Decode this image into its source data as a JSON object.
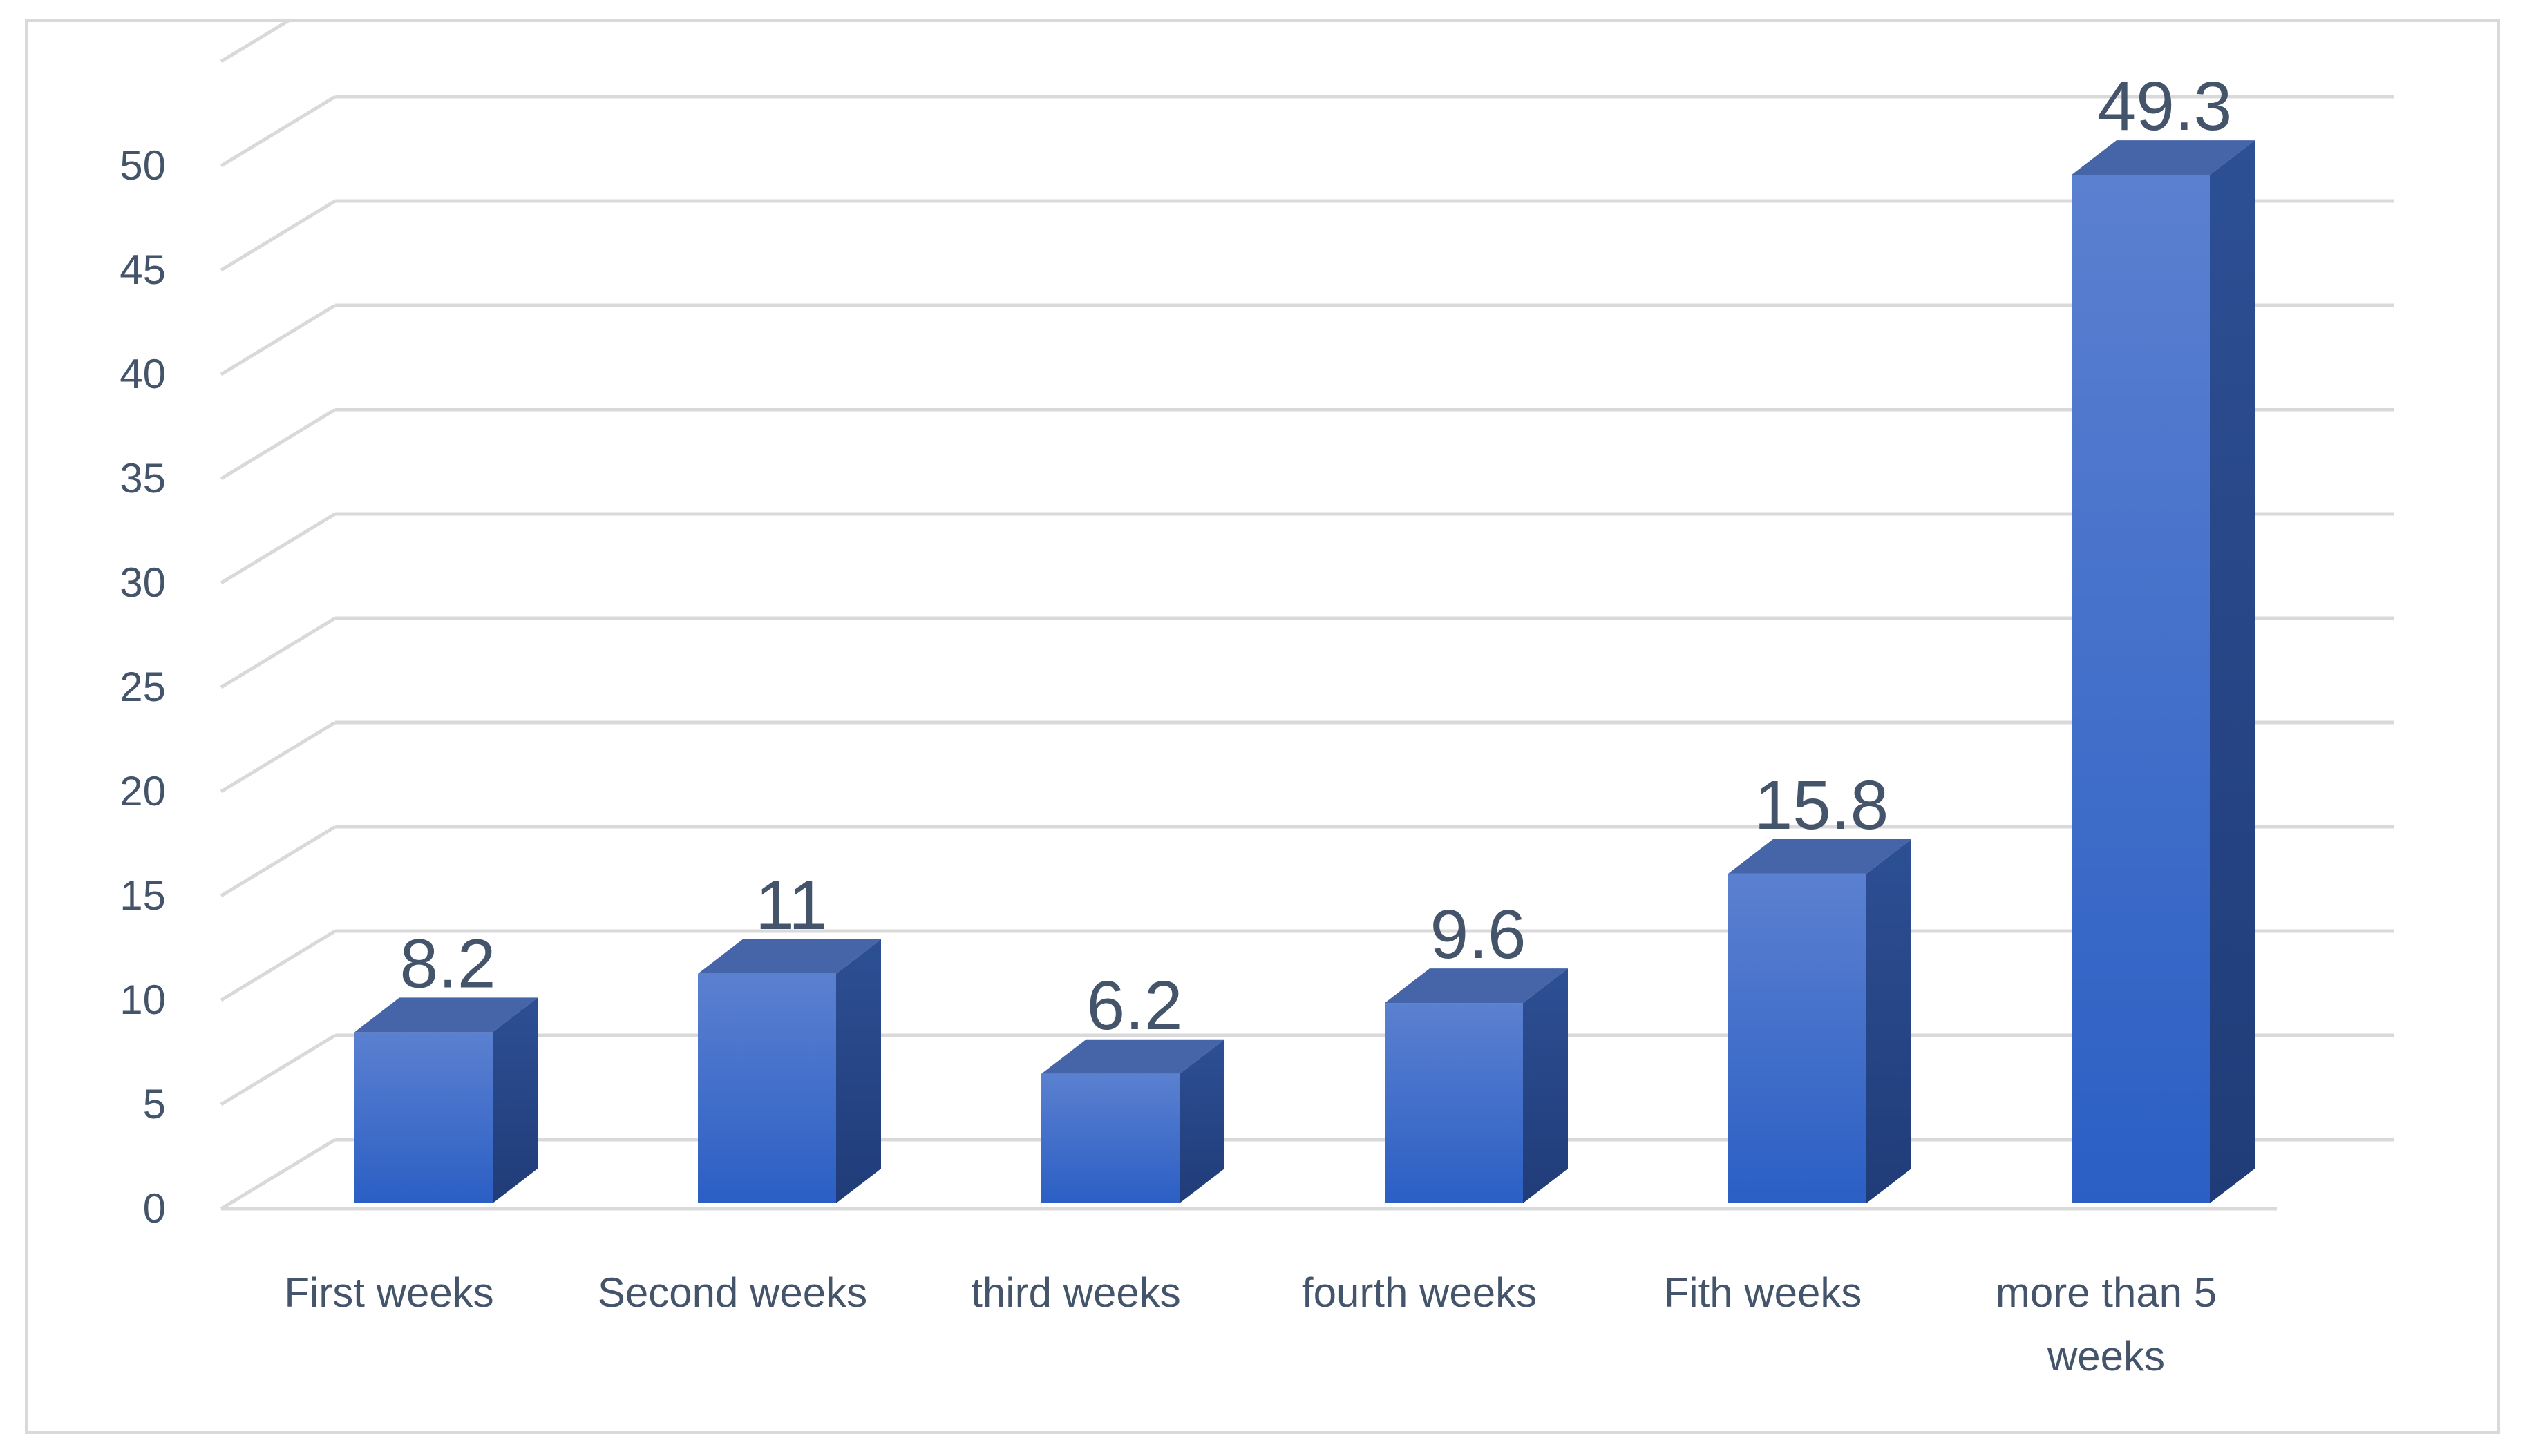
{
  "chart_data": {
    "type": "bar",
    "style": "3d-column",
    "categories": [
      [
        "First weeks"
      ],
      [
        "Second weeks"
      ],
      [
        "third weeks"
      ],
      [
        "fourth weeks"
      ],
      [
        "Fith weeks"
      ],
      [
        "more than 5",
        "weeks"
      ]
    ],
    "values": [
      8.2,
      11,
      6.2,
      9.6,
      15.8,
      49.3
    ],
    "data_labels": [
      "8.2",
      "11",
      "6.2",
      "9.6",
      "15.8",
      "49.3"
    ],
    "yticks": [
      "0",
      "5",
      "10",
      "15",
      "20",
      "25",
      "30",
      "35",
      "40",
      "45",
      "50"
    ],
    "ylim": [
      0,
      55
    ],
    "grid": true,
    "legend": "none",
    "colors": {
      "bar_front_top": "#5b80d0",
      "bar_front_bottom": "#2b5fc4",
      "bar_side": "#203c78",
      "bar_top": "#4664a8",
      "grid": "#d9d9d9",
      "text": "#44546a"
    }
  }
}
